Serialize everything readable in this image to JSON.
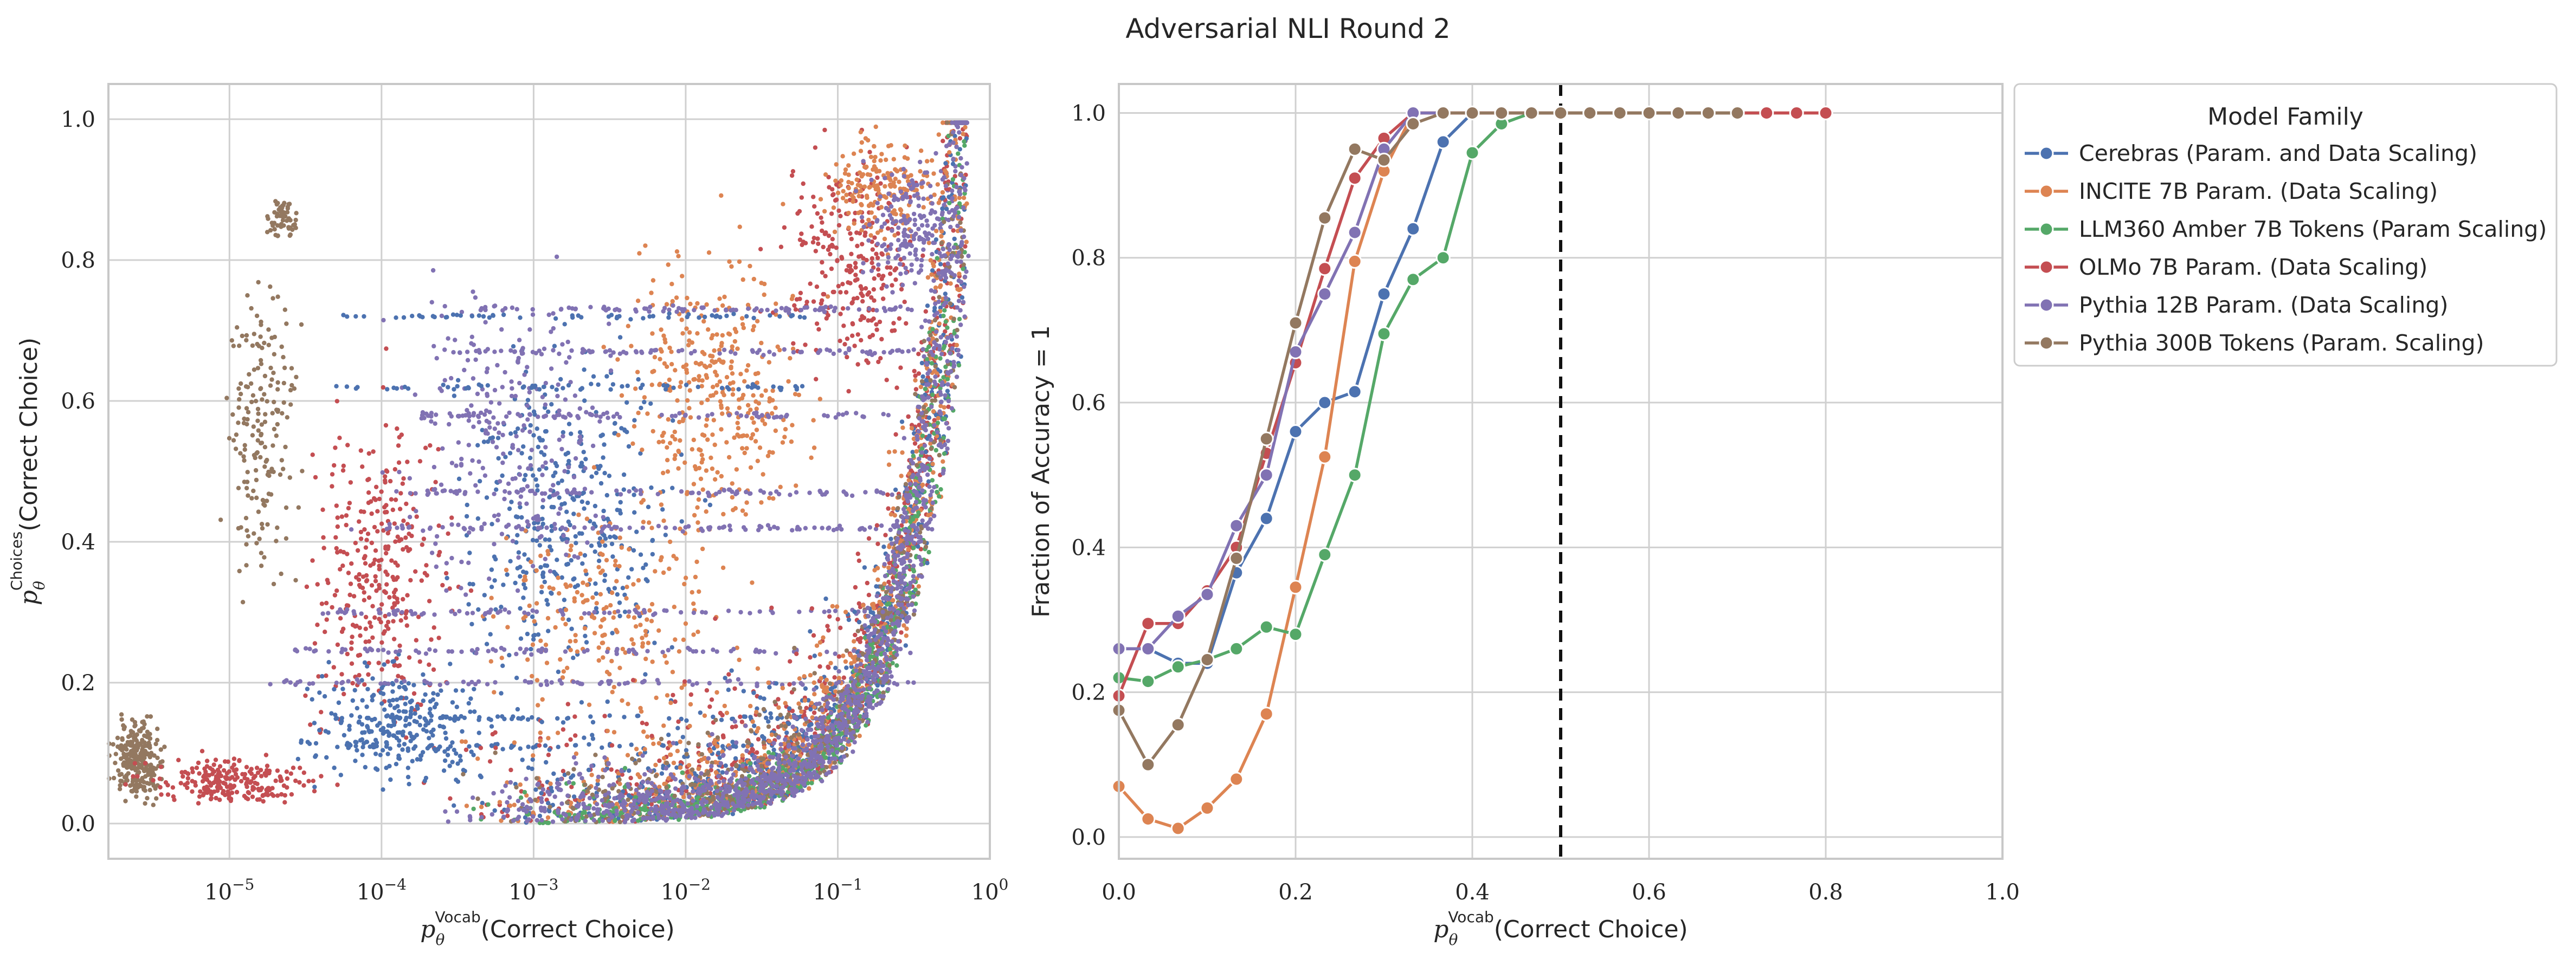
{
  "figure": {
    "suptitle": "Adversarial NLI Round 2"
  },
  "chart_data": [
    {
      "type": "scatter",
      "title": "",
      "xlabel": "p_θ^Vocab(Correct Choice)",
      "xlabel_text": "(Correct Choice)",
      "xlabel_super": "Vocab",
      "ylabel": "p_θ^Choices(Correct Choice)",
      "ylabel_text": "(Correct Choice)",
      "ylabel_super": "Choices",
      "xscale": "log",
      "xlim": [
        1.6e-06,
        1.0
      ],
      "ylim": [
        -0.05,
        1.05
      ],
      "xtick_labels": [
        {
          "base": "10",
          "exp": "−5",
          "value": 1e-05
        },
        {
          "base": "10",
          "exp": "−4",
          "value": 0.0001
        },
        {
          "base": "10",
          "exp": "−3",
          "value": 0.001
        },
        {
          "base": "10",
          "exp": "−2",
          "value": 0.01
        },
        {
          "base": "10",
          "exp": "−1",
          "value": 0.1
        },
        {
          "base": "10",
          "exp": "0",
          "value": 1
        }
      ],
      "ytick_labels": [
        "0.0",
        "0.2",
        "0.4",
        "0.6",
        "0.8",
        "1.0"
      ],
      "grid": true,
      "note": "dense scatter of per-sample points for each model family; point clouds approximated",
      "series": [
        {
          "name": "Cerebras (Param. and Data Scaling)",
          "color": "#4c72b0"
        },
        {
          "name": "INCITE 7B Param. (Data Scaling)",
          "color": "#dd8452"
        },
        {
          "name": "LLM360 Amber 7B Tokens (Param Scaling)",
          "color": "#55a868"
        },
        {
          "name": "OLMo 7B Param. (Data Scaling)",
          "color": "#c44e52"
        },
        {
          "name": "Pythia 12B Param. (Data Scaling)",
          "color": "#8172b3"
        },
        {
          "name": "Pythia 300B Tokens (Param. Scaling)",
          "color": "#937860"
        }
      ]
    },
    {
      "type": "line",
      "title": "",
      "xlabel": "p_θ^Vocab(Correct Choice)",
      "xlabel_text": "(Correct Choice)",
      "xlabel_super": "Vocab",
      "ylabel": "Fraction of Accuracy = 1",
      "xlim": [
        0.0,
        1.0
      ],
      "ylim": [
        -0.03,
        1.04
      ],
      "xtick_labels": [
        "0.0",
        "0.2",
        "0.4",
        "0.6",
        "0.8",
        "1.0"
      ],
      "ytick_labels": [
        "0.0",
        "0.2",
        "0.4",
        "0.6",
        "0.8",
        "1.0"
      ],
      "grid": true,
      "vline": 0.5,
      "legend": {
        "title": "Model Family",
        "placement": "outside-upper-right"
      },
      "series": [
        {
          "name": "Cerebras (Param. and Data Scaling)",
          "color": "#4c72b0",
          "x": [
            0.0,
            0.033,
            0.067,
            0.1,
            0.133,
            0.167,
            0.2,
            0.233,
            0.267,
            0.3,
            0.333,
            0.367,
            0.4,
            0.433,
            0.467,
            0.5,
            0.533,
            0.567,
            0.6,
            0.633,
            0.667,
            0.7
          ],
          "y": [
            0.26,
            0.26,
            0.24,
            0.24,
            0.365,
            0.44,
            0.56,
            0.6,
            0.615,
            0.75,
            0.84,
            0.96,
            1.0,
            1.0,
            1.0,
            1.0,
            1.0,
            1.0,
            1.0,
            1.0,
            1.0,
            1.0
          ]
        },
        {
          "name": "INCITE 7B Param. (Data Scaling)",
          "color": "#dd8452",
          "x": [
            0.0,
            0.033,
            0.067,
            0.1,
            0.133,
            0.167,
            0.2,
            0.233,
            0.267,
            0.3,
            0.333,
            0.367,
            0.4,
            0.433,
            0.467,
            0.5,
            0.533,
            0.567,
            0.6,
            0.633,
            0.667,
            0.7,
            0.733,
            0.767,
            0.8
          ],
          "y": [
            0.07,
            0.025,
            0.012,
            0.04,
            0.08,
            0.17,
            0.345,
            0.525,
            0.795,
            0.92,
            1.0,
            1.0,
            1.0,
            1.0,
            1.0,
            1.0,
            1.0,
            1.0,
            1.0,
            1.0,
            1.0,
            1.0,
            1.0,
            1.0,
            1.0
          ]
        },
        {
          "name": "LLM360 Amber 7B Tokens (Param Scaling)",
          "color": "#55a868",
          "x": [
            0.0,
            0.033,
            0.067,
            0.1,
            0.133,
            0.167,
            0.2,
            0.233,
            0.267,
            0.3,
            0.333,
            0.367,
            0.4,
            0.433,
            0.467,
            0.5,
            0.533,
            0.567,
            0.6,
            0.633,
            0.667,
            0.7,
            0.733
          ],
          "y": [
            0.22,
            0.215,
            0.235,
            0.245,
            0.26,
            0.29,
            0.28,
            0.39,
            0.5,
            0.695,
            0.77,
            0.8,
            0.945,
            0.985,
            1.0,
            1.0,
            1.0,
            1.0,
            1.0,
            1.0,
            1.0,
            1.0,
            1.0
          ]
        },
        {
          "name": "OLMo 7B Param. (Data Scaling)",
          "color": "#c44e52",
          "x": [
            0.0,
            0.033,
            0.067,
            0.1,
            0.133,
            0.167,
            0.2,
            0.233,
            0.267,
            0.3,
            0.333,
            0.367,
            0.4,
            0.433,
            0.467,
            0.5,
            0.533,
            0.567,
            0.6,
            0.633,
            0.667,
            0.7,
            0.733,
            0.767,
            0.8
          ],
          "y": [
            0.195,
            0.295,
            0.295,
            0.34,
            0.4,
            0.53,
            0.655,
            0.785,
            0.91,
            0.965,
            1.0,
            1.0,
            1.0,
            1.0,
            1.0,
            1.0,
            1.0,
            1.0,
            1.0,
            1.0,
            1.0,
            1.0,
            1.0,
            1.0,
            1.0
          ]
        },
        {
          "name": "Pythia 12B Param. (Data Scaling)",
          "color": "#8172b3",
          "x": [
            0.0,
            0.033,
            0.067,
            0.1,
            0.133,
            0.167,
            0.2,
            0.233,
            0.267,
            0.3,
            0.333,
            0.367
          ],
          "y": [
            0.26,
            0.26,
            0.305,
            0.335,
            0.43,
            0.5,
            0.67,
            0.75,
            0.835,
            0.95,
            1.0,
            1.0
          ]
        },
        {
          "name": "Pythia 300B Tokens (Param. Scaling)",
          "color": "#937860",
          "x": [
            0.0,
            0.033,
            0.067,
            0.1,
            0.133,
            0.167,
            0.2,
            0.233,
            0.267,
            0.3,
            0.333,
            0.367,
            0.4,
            0.433,
            0.467,
            0.5,
            0.533,
            0.567,
            0.6,
            0.633,
            0.667,
            0.7
          ],
          "y": [
            0.175,
            0.1,
            0.155,
            0.245,
            0.385,
            0.55,
            0.71,
            0.855,
            0.95,
            0.935,
            0.985,
            1.0,
            1.0,
            1.0,
            1.0,
            1.0,
            1.0,
            1.0,
            1.0,
            1.0,
            1.0,
            1.0
          ]
        }
      ]
    }
  ]
}
